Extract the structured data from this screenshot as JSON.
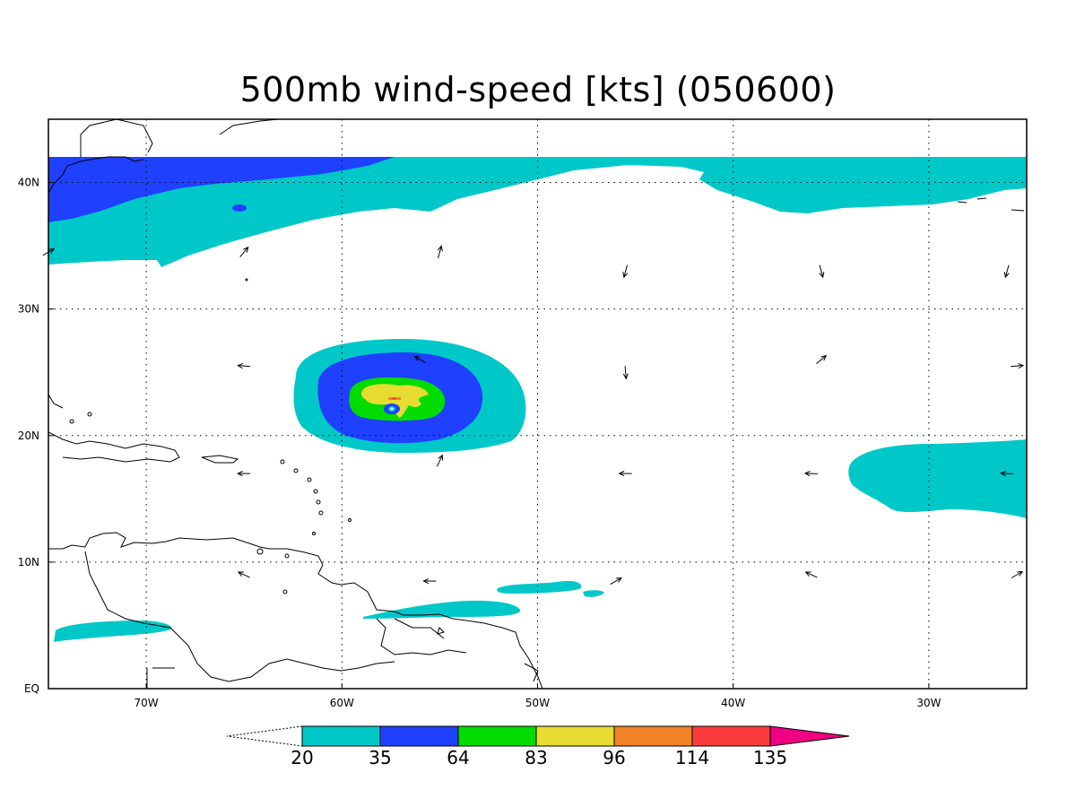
{
  "title": "500mb wind-speed [kts] (050600)",
  "map": {
    "lon_range": [
      -75,
      -25
    ],
    "lat_range": [
      0,
      45
    ],
    "lon_ticks": [
      {
        "value": -70,
        "label": "70W"
      },
      {
        "value": -60,
        "label": "60W"
      },
      {
        "value": -50,
        "label": "50W"
      },
      {
        "value": -40,
        "label": "40W"
      },
      {
        "value": -30,
        "label": "30W"
      }
    ],
    "lat_ticks": [
      {
        "value": 0,
        "label": "EQ"
      },
      {
        "value": 10,
        "label": "10N"
      },
      {
        "value": 20,
        "label": "20N"
      },
      {
        "value": 30,
        "label": "30N"
      },
      {
        "value": 40,
        "label": "40N"
      }
    ],
    "grid": true,
    "coastlines": true
  },
  "colorbar": {
    "levels": [
      "20",
      "35",
      "64",
      "83",
      "96",
      "114",
      "135"
    ],
    "colors": [
      "#00c8c8",
      "#2040ff",
      "#00dc00",
      "#e6dc32",
      "#f08228",
      "#fa3c3c",
      "#f00082"
    ],
    "extend_low": true,
    "extend_high": true
  },
  "colors": {
    "teal": "#00c8c8",
    "blue": "#2040ff",
    "green": "#00dc00",
    "yellow": "#e6dc32",
    "orange": "#f08228",
    "red": "#fa3c3c",
    "magenta": "#f00082"
  },
  "wind_arrows": [
    {
      "lon": -75,
      "lat": 34.5,
      "dir_deg": 60
    },
    {
      "lon": -65,
      "lat": 34.5,
      "dir_deg": 40
    },
    {
      "lon": -55,
      "lat": 34.5,
      "dir_deg": 15
    },
    {
      "lon": -45.5,
      "lat": 33,
      "dir_deg": 195
    },
    {
      "lon": -35.5,
      "lat": 33,
      "dir_deg": 165
    },
    {
      "lon": -26,
      "lat": 33,
      "dir_deg": 195
    },
    {
      "lon": -65,
      "lat": 25.5,
      "dir_deg": 275
    },
    {
      "lon": -56,
      "lat": 26,
      "dir_deg": 300
    },
    {
      "lon": -45.5,
      "lat": 25,
      "dir_deg": 175
    },
    {
      "lon": -35.5,
      "lat": 26,
      "dir_deg": 50
    },
    {
      "lon": -25.5,
      "lat": 25.5,
      "dir_deg": 85
    },
    {
      "lon": -65,
      "lat": 17,
      "dir_deg": 270
    },
    {
      "lon": -55,
      "lat": 18,
      "dir_deg": 25
    },
    {
      "lon": -45.5,
      "lat": 17,
      "dir_deg": 270
    },
    {
      "lon": -36,
      "lat": 17,
      "dir_deg": 272
    },
    {
      "lon": -26,
      "lat": 17,
      "dir_deg": 272
    },
    {
      "lon": -65,
      "lat": 9,
      "dir_deg": 295
    },
    {
      "lon": -55.5,
      "lat": 8.5,
      "dir_deg": 270
    },
    {
      "lon": -46,
      "lat": 8.5,
      "dir_deg": 60
    },
    {
      "lon": -36,
      "lat": 9,
      "dir_deg": 295
    },
    {
      "lon": -25.5,
      "lat": 9,
      "dir_deg": 60
    }
  ]
}
